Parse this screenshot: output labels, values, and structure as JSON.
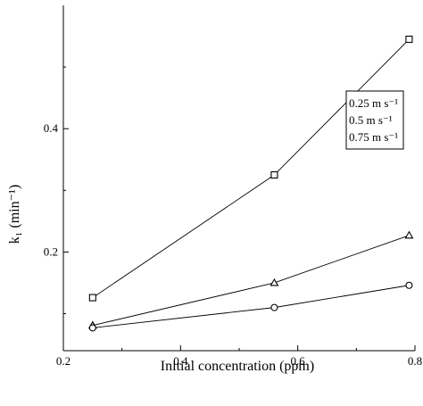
{
  "chart_data": {
    "type": "line",
    "title": "",
    "xlabel": "Initial concentration (ppm)",
    "ylabel": "k₁ (min⁻¹)",
    "xlim": [
      0.2,
      0.8
    ],
    "ylim": [
      0.04,
      0.6
    ],
    "xticks": [
      0.2,
      0.4,
      0.6,
      0.8
    ],
    "xtick_labels": [
      "0.2",
      "0.4",
      "0.6",
      "0.8"
    ],
    "yticks": [
      0.2,
      0.4
    ],
    "ytick_labels": [
      "0.2",
      "0.4"
    ],
    "y_minor_ticks": [
      0.1,
      0.3,
      0.5
    ],
    "x": [
      0.25,
      0.56,
      0.79
    ],
    "series": [
      {
        "name": "0.25 m s⁻¹",
        "marker": "square",
        "values": [
          0.126,
          0.325,
          0.545
        ]
      },
      {
        "name": "0.5 m s⁻¹",
        "marker": "triangle",
        "values": [
          0.081,
          0.15,
          0.227
        ]
      },
      {
        "name": "0.75 m s⁻¹",
        "marker": "circle",
        "values": [
          0.077,
          0.11,
          0.146
        ]
      }
    ],
    "legend": {
      "location": "upper-right-inside",
      "border": true
    },
    "grid": false,
    "color": "#000000"
  }
}
